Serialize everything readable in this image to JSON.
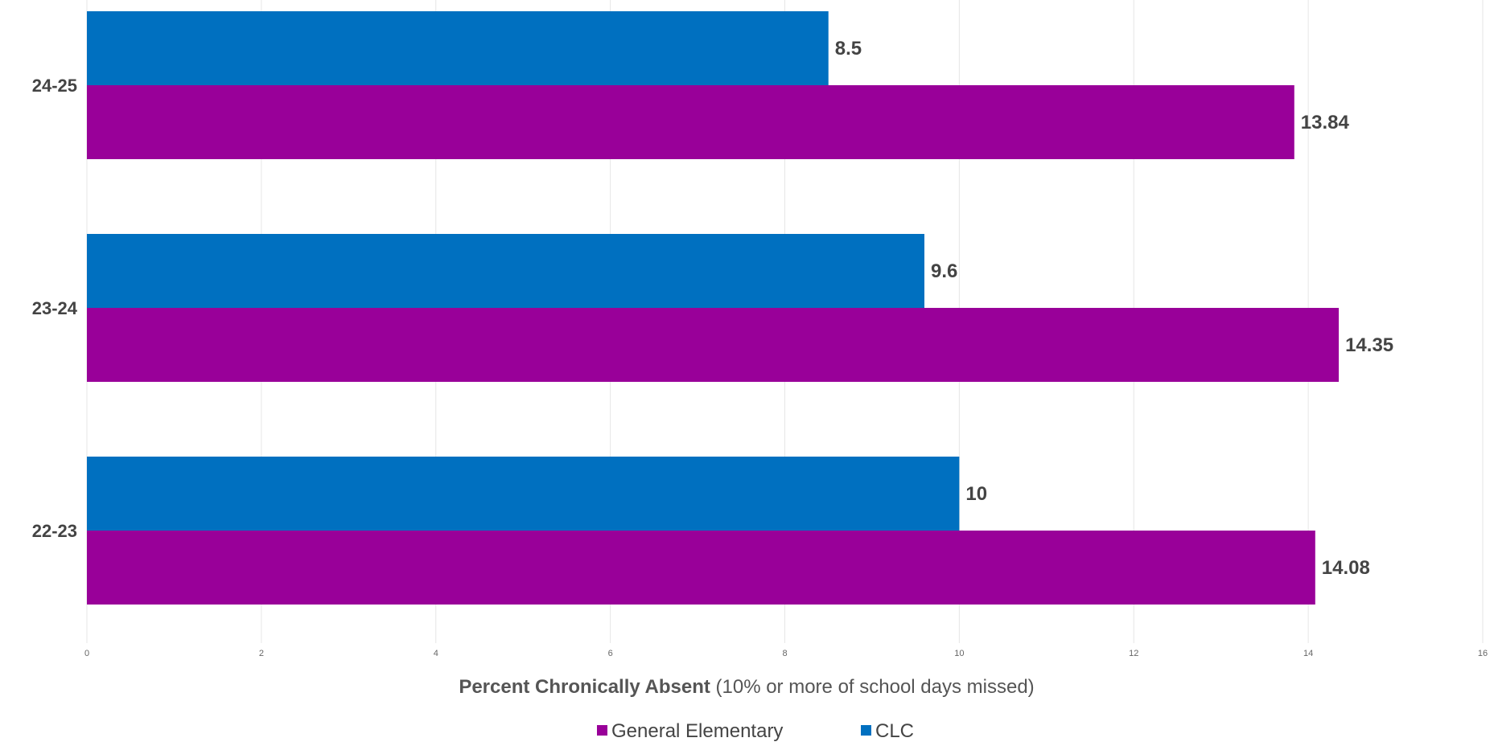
{
  "chart_data": {
    "type": "bar",
    "orientation": "horizontal",
    "categories": [
      "24-25",
      "23-24",
      "22-23"
    ],
    "series": [
      {
        "name": "CLC",
        "color": "#0070C0",
        "values": [
          8.5,
          9.6,
          10
        ]
      },
      {
        "name": "General Elementary",
        "color": "#990099",
        "values": [
          13.84,
          14.35,
          14.08
        ]
      }
    ],
    "data_labels": {
      "CLC": [
        "8.5",
        "9.6",
        "10"
      ],
      "General Elementary": [
        "13.84",
        "14.35",
        "14.08"
      ]
    },
    "xlabel_bold": "Percent Chronically Absent",
    "xlabel_rest": " (10% or more of school days missed)",
    "xlim": [
      0,
      16
    ],
    "xticks": [
      "0",
      "2",
      "4",
      "6",
      "8",
      "10",
      "12",
      "14",
      "16"
    ],
    "grid": true,
    "legend_position": "bottom",
    "legend": [
      "General Elementary",
      "CLC"
    ]
  }
}
